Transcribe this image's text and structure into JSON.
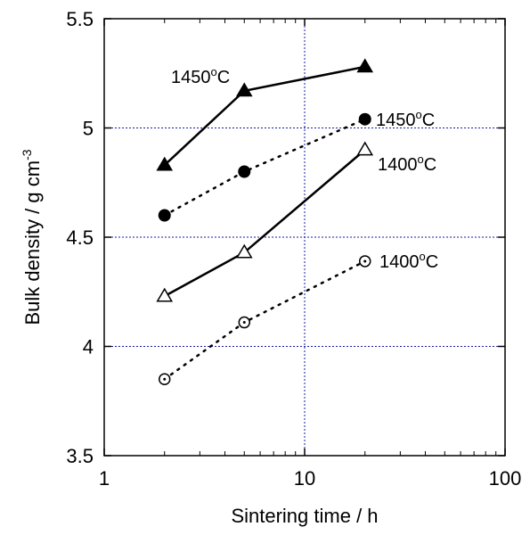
{
  "chart_data": {
    "type": "scatter",
    "xlabel": "Sintering time / h",
    "ylabel_main": "Bulk density / g cm",
    "ylabel_sup": "-3",
    "xscale": "log",
    "xlim": [
      1,
      100
    ],
    "ylim": [
      3.5,
      5.5
    ],
    "x_ticks": [
      1,
      10,
      100
    ],
    "x_tick_labels": [
      "1",
      "10",
      "100"
    ],
    "y_ticks": [
      3.5,
      4,
      4.5,
      5,
      5.5
    ],
    "y_tick_labels": [
      "3.5",
      "4",
      "4.5",
      "5",
      "5.5"
    ],
    "grid": {
      "x": [
        10
      ],
      "y": [
        4,
        4.5,
        5
      ],
      "style": "dotted",
      "color": "#1a1aa6"
    },
    "series": [
      {
        "label_main": "1450",
        "label_sup": "o",
        "label_unit": "C",
        "marker": "filled-triangle",
        "line": "solid",
        "x": [
          2,
          5,
          20
        ],
        "y": [
          4.83,
          5.17,
          5.28
        ]
      },
      {
        "label_main": "1450",
        "label_sup": "o",
        "label_unit": "C",
        "marker": "filled-circle",
        "line": "dotted",
        "x": [
          2,
          5,
          20
        ],
        "y": [
          4.6,
          4.8,
          5.04
        ]
      },
      {
        "label_main": "1400",
        "label_sup": "o",
        "label_unit": "C",
        "marker": "open-triangle",
        "line": "solid",
        "x": [
          2,
          5,
          20
        ],
        "y": [
          4.23,
          4.43,
          4.9
        ]
      },
      {
        "label_main": "1400",
        "label_sup": "o",
        "label_unit": "C",
        "marker": "open-circle",
        "line": "dotted",
        "x": [
          2,
          5,
          20
        ],
        "y": [
          3.85,
          4.11,
          4.39
        ]
      }
    ]
  }
}
